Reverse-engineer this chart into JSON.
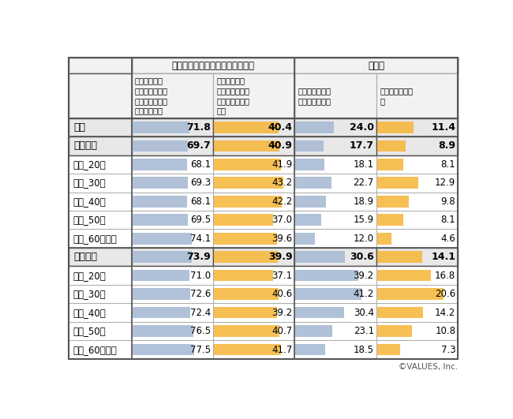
{
  "col_headers_top": [
    "キャッシュレス・消費者還元事業",
    "ポイ活"
  ],
  "col_headers_sub": [
    "キャッシュレ\nス・消費者還元\n事業という言葉\nを知っている",
    "キャッシュレ\nス・消費者還元\n事業について調\nべた",
    "ポイ活という言\n葉を知っている",
    "ポイ活を行なっ\nた"
  ],
  "rows": [
    {
      "label": "全体",
      "values": [
        71.8,
        40.4,
        24.0,
        11.4
      ],
      "bold": true
    },
    {
      "label": "男性全体",
      "values": [
        69.7,
        40.9,
        17.7,
        8.9
      ],
      "bold": true
    },
    {
      "label": "男性_20代",
      "values": [
        68.1,
        41.9,
        18.1,
        8.1
      ],
      "bold": false
    },
    {
      "label": "男性_30代",
      "values": [
        69.3,
        43.2,
        22.7,
        12.9
      ],
      "bold": false
    },
    {
      "label": "男性_40代",
      "values": [
        68.1,
        42.2,
        18.9,
        9.8
      ],
      "bold": false
    },
    {
      "label": "男性_50代",
      "values": [
        69.5,
        37.0,
        15.9,
        8.1
      ],
      "bold": false
    },
    {
      "label": "男性_60代以上",
      "values": [
        74.1,
        39.6,
        12.0,
        4.6
      ],
      "bold": false
    },
    {
      "label": "女性全体",
      "values": [
        73.9,
        39.9,
        30.6,
        14.1
      ],
      "bold": true
    },
    {
      "label": "女性_20代",
      "values": [
        71.0,
        37.1,
        39.2,
        16.8
      ],
      "bold": false
    },
    {
      "label": "女性_30代",
      "values": [
        72.6,
        40.6,
        41.2,
        20.6
      ],
      "bold": false
    },
    {
      "label": "女性_40代",
      "values": [
        72.4,
        39.2,
        30.4,
        14.2
      ],
      "bold": false
    },
    {
      "label": "女性_50代",
      "values": [
        76.5,
        40.7,
        23.1,
        10.8
      ],
      "bold": false
    },
    {
      "label": "女性_60代以上",
      "values": [
        77.5,
        41.7,
        18.5,
        7.3
      ],
      "bold": false
    }
  ],
  "col_max_values": [
    100.0,
    50.0,
    50.0,
    25.0
  ],
  "bar_colors": [
    "#a8bbd4",
    "#f5b942",
    "#a8bbd4",
    "#f5b942"
  ],
  "header_bg": "#f2f2f2",
  "bold_row_bg": "#e8e8e8",
  "normal_row_bg": "#ffffff",
  "strong_border": "#555555",
  "light_border": "#aaaaaa",
  "copyright": "©VALUES, Inc."
}
